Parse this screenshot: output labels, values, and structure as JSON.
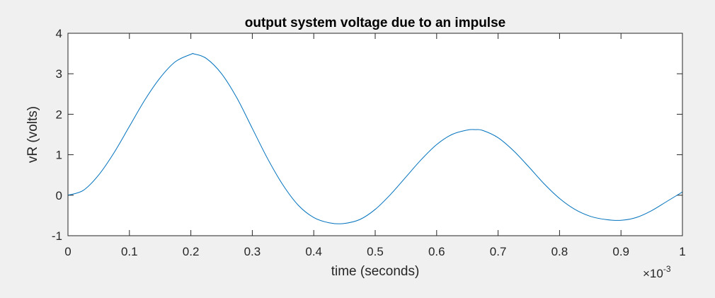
{
  "chart_data": {
    "type": "line",
    "title": "output system voltage due to an impulse",
    "xlabel": "time (seconds)",
    "ylabel": "vR (volts)",
    "x_exponent_label": {
      "prefix": "×10",
      "exponent": "-3"
    },
    "xlim": [
      0,
      0.001
    ],
    "ylim": [
      -1,
      4
    ],
    "x_ticks": [
      0,
      0.0001,
      0.0002,
      0.0003,
      0.0004,
      0.0005,
      0.0006,
      0.0007,
      0.0008,
      0.0009,
      0.001
    ],
    "x_tick_labels": [
      "0",
      "0.1",
      "0.2",
      "0.3",
      "0.4",
      "0.5",
      "0.6",
      "0.7",
      "0.8",
      "0.9",
      "1"
    ],
    "y_ticks": [
      -1,
      0,
      1,
      2,
      3,
      4
    ],
    "y_tick_labels": [
      "-1",
      "0",
      "1",
      "2",
      "3",
      "4"
    ],
    "grid": false,
    "series": [
      {
        "color": "#0072bd",
        "x": [
          0,
          2.5e-05,
          5e-05,
          7.5e-05,
          0.0001,
          0.000125,
          0.00015,
          0.000175,
          0.0002,
          0.000205,
          0.000225,
          0.00025,
          0.000275,
          0.0003,
          0.000325,
          0.00035,
          0.000375,
          0.0004,
          0.000425,
          0.000448,
          0.000475,
          0.0005,
          0.000525,
          0.00055,
          0.000575,
          0.0006,
          0.000625,
          0.00065,
          0.000662,
          0.000675,
          0.0007,
          0.000725,
          0.00075,
          0.000775,
          0.0008,
          0.000825,
          0.00085,
          0.000875,
          0.0009,
          0.000925,
          0.00095,
          0.000975,
          0.001
        ],
        "y": [
          0,
          0.12,
          0.5,
          1.05,
          1.7,
          2.35,
          2.9,
          3.3,
          3.48,
          3.49,
          3.38,
          3.0,
          2.4,
          1.65,
          0.9,
          0.25,
          -0.25,
          -0.55,
          -0.68,
          -0.7,
          -0.6,
          -0.35,
          0.02,
          0.45,
          0.88,
          1.25,
          1.5,
          1.61,
          1.62,
          1.6,
          1.42,
          1.1,
          0.7,
          0.28,
          -0.08,
          -0.35,
          -0.52,
          -0.6,
          -0.62,
          -0.55,
          -0.38,
          -0.15,
          0.08
        ]
      }
    ]
  }
}
